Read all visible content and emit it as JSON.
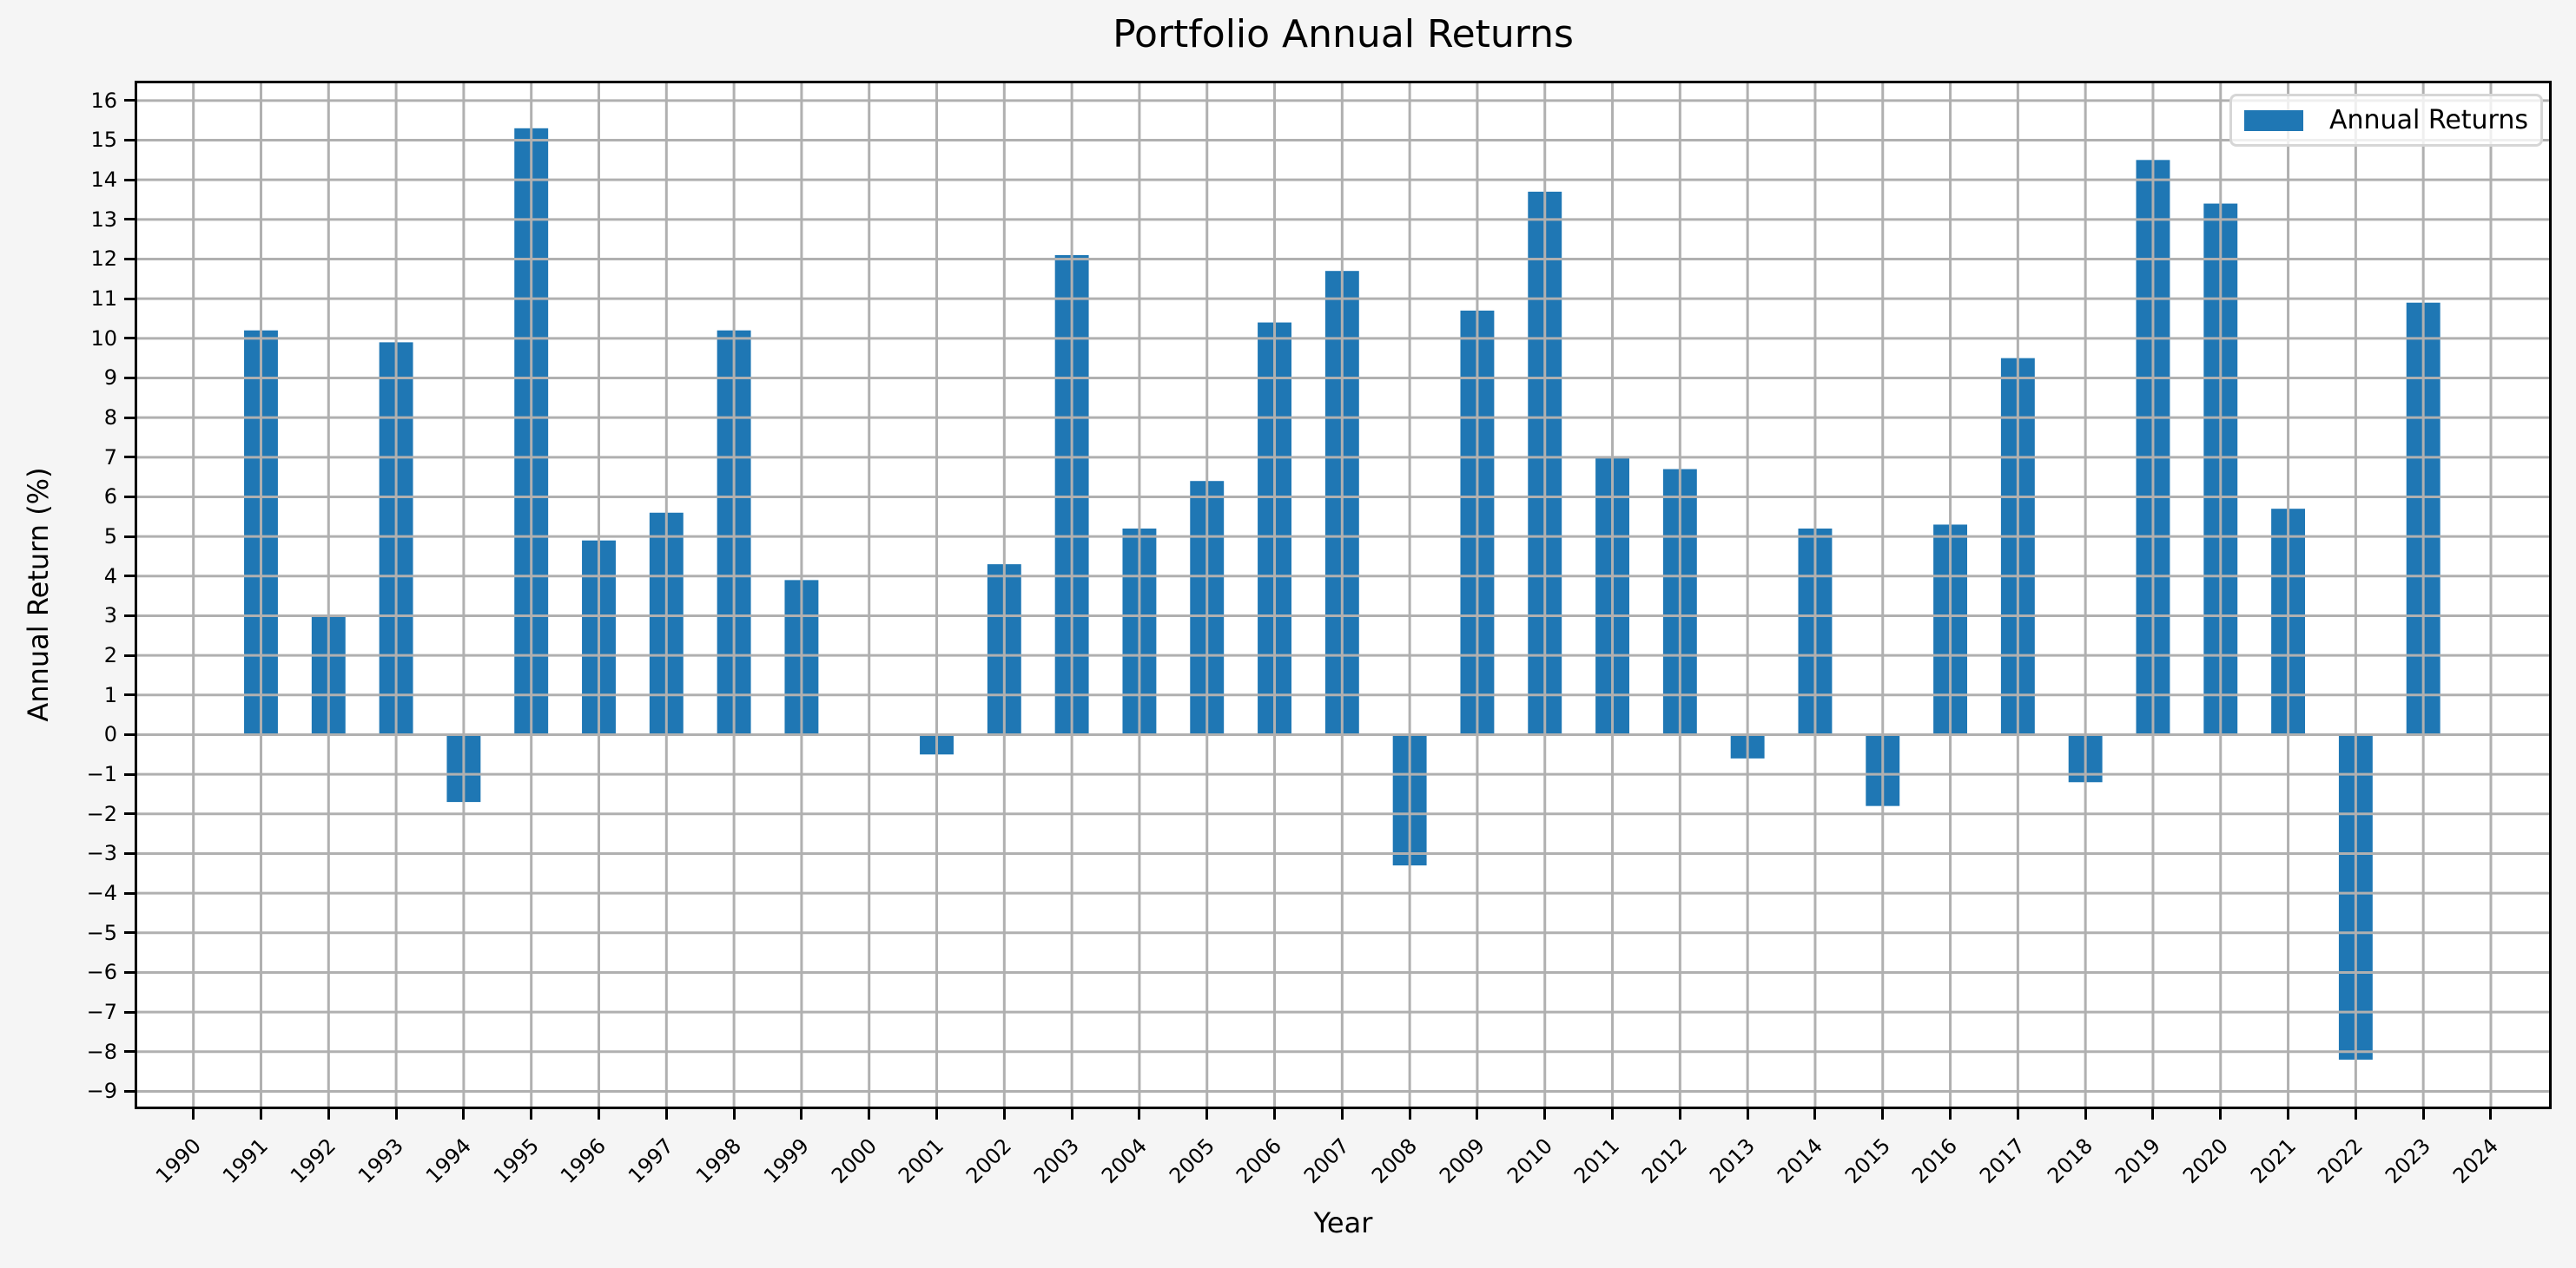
{
  "chart_data": {
    "type": "bar",
    "title": "Portfolio Annual Returns",
    "xlabel": "Year",
    "ylabel": "Annual Return (%)",
    "categories": [
      1990,
      1991,
      1992,
      1993,
      1994,
      1995,
      1996,
      1997,
      1998,
      1999,
      2000,
      2001,
      2002,
      2003,
      2004,
      2005,
      2006,
      2007,
      2008,
      2009,
      2010,
      2011,
      2012,
      2013,
      2014,
      2015,
      2016,
      2017,
      2018,
      2019,
      2020,
      2021,
      2022,
      2023,
      2024
    ],
    "series": [
      {
        "name": "Annual Returns",
        "color": "#1f77b4",
        "values": [
          null,
          10.2,
          3.0,
          9.9,
          -1.7,
          15.3,
          4.9,
          5.6,
          10.2,
          3.9,
          null,
          -0.5,
          4.3,
          12.1,
          5.2,
          6.4,
          10.4,
          11.7,
          -3.3,
          10.7,
          13.7,
          7.0,
          6.7,
          -0.6,
          5.2,
          -1.8,
          5.3,
          9.5,
          -1.2,
          14.5,
          13.4,
          5.7,
          -8.2,
          10.9,
          null
        ]
      }
    ],
    "yticks": [
      16,
      15,
      14,
      13,
      12,
      11,
      10,
      9,
      8,
      7,
      6,
      5,
      4,
      3,
      2,
      1,
      0,
      -1,
      -2,
      -3,
      -4,
      -5,
      -6,
      -7,
      -8,
      -9
    ],
    "ylim": [
      -9.45,
      16.5
    ],
    "xlim": [
      1989.13,
      2024.9
    ],
    "bar_width": 0.5,
    "grid": true,
    "legend_position": "upper right"
  },
  "ui": {
    "title": "Portfolio Annual Returns",
    "xlabel": "Year",
    "ylabel": "Annual Return (%)",
    "legend_label": "Annual Returns",
    "bar_color": "#1f77b4",
    "grid_color": "#b0b0b0"
  }
}
